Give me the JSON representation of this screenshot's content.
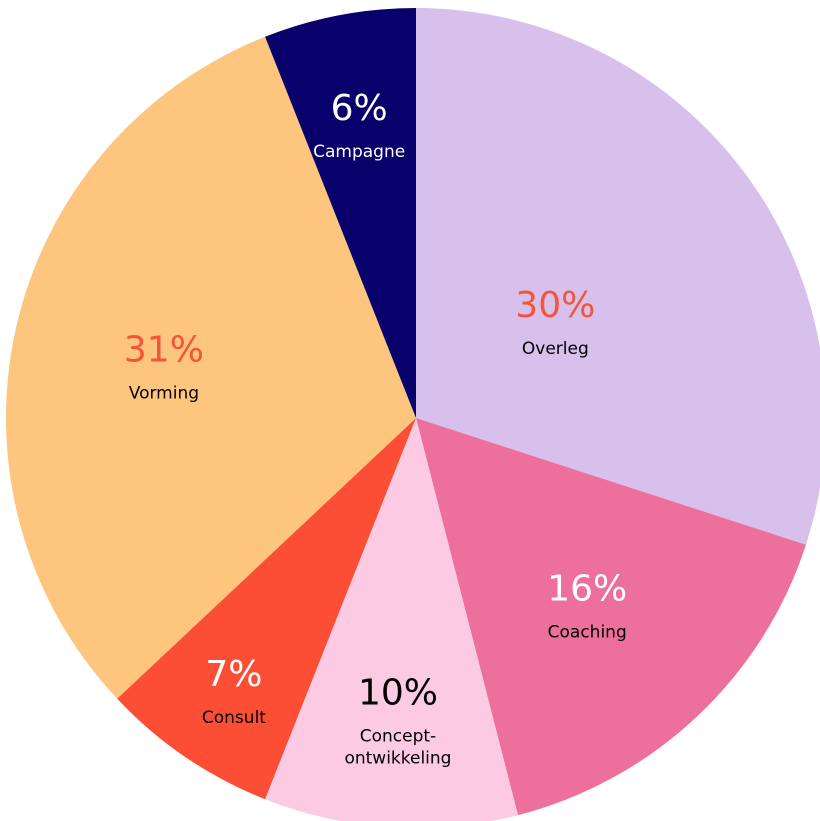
{
  "chart_data": {
    "type": "pie",
    "categories": [
      "Overleg",
      "Coaching",
      "Concept-\nontwikkeling",
      "Consult",
      "Vorming",
      "Campagne"
    ],
    "values": [
      30,
      16,
      10,
      7,
      31,
      6
    ],
    "value_labels": [
      "30%",
      "16%",
      "10%",
      "7%",
      "31%",
      "6%"
    ],
    "colors": [
      "#d8c0ec",
      "#ec6f9c",
      "#fdcae3",
      "#fc4e34",
      "#fdc57e",
      "#08006b"
    ],
    "value_label_colors": [
      "#f5533a",
      "#ffffff",
      "#000000",
      "#ffffff",
      "#f5533a",
      "#ffffff"
    ],
    "category_label_colors": [
      "#000000",
      "#000000",
      "#000000",
      "#000000",
      "#000000",
      "#ffffff"
    ]
  }
}
